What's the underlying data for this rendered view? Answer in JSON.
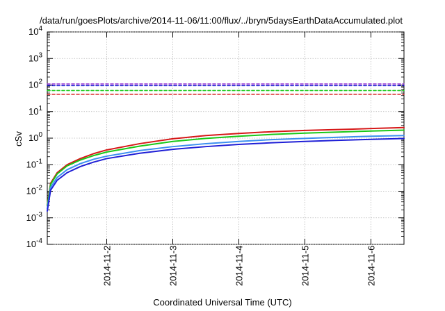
{
  "chart_data": {
    "type": "line",
    "title": "/data/run/goesPlots/archive/2014-11-06/11:00/flux/../bryn/5daysEarthDataAccumulated.plot",
    "xlabel": "Coordinated Universal Time (UTC)",
    "ylabel": "cSv",
    "x_domain_days": [
      1.1,
      6.5
    ],
    "x_ticks": [
      {
        "value": 2,
        "label": "2014-11-2"
      },
      {
        "value": 3,
        "label": "2014-11-3"
      },
      {
        "value": 4,
        "label": "2014-11-4"
      },
      {
        "value": 5,
        "label": "2014-11-5"
      },
      {
        "value": 6,
        "label": "2014-11-6"
      }
    ],
    "yscale": "log",
    "ylim": [
      0.0001,
      10000
    ],
    "y_ticks": [
      {
        "base": "10",
        "exp": "4",
        "value": 10000
      },
      {
        "base": "10",
        "exp": "3",
        "value": 1000
      },
      {
        "base": "10",
        "exp": "2",
        "value": 100
      },
      {
        "base": "10",
        "exp": "1",
        "value": 10
      },
      {
        "base": "10",
        "exp": "0",
        "value": 1
      },
      {
        "base": "10",
        "exp": "-1",
        "value": 0.1
      },
      {
        "base": "10",
        "exp": "-2",
        "value": 0.01
      },
      {
        "base": "10",
        "exp": "-3",
        "value": 0.001
      },
      {
        "base": "10",
        "exp": "-4",
        "value": 0.0001
      }
    ],
    "grid": true,
    "series": [
      {
        "style": "solid",
        "color": "#d61818",
        "x": [
          1.1,
          1.15,
          1.25,
          1.4,
          1.6,
          1.8,
          2.0,
          2.5,
          3.0,
          3.5,
          4.0,
          4.5,
          5.0,
          5.5,
          6.0,
          6.5
        ],
        "y": [
          0.003,
          0.02,
          0.05,
          0.1,
          0.17,
          0.26,
          0.36,
          0.62,
          0.95,
          1.25,
          1.5,
          1.75,
          1.95,
          2.1,
          2.3,
          2.5
        ]
      },
      {
        "style": "solid",
        "color": "#18c818",
        "x": [
          1.1,
          1.15,
          1.25,
          1.4,
          1.6,
          1.8,
          2.0,
          2.5,
          3.0,
          3.5,
          4.0,
          4.5,
          5.0,
          5.5,
          6.0,
          6.5
        ],
        "y": [
          0.0028,
          0.018,
          0.045,
          0.09,
          0.15,
          0.22,
          0.3,
          0.5,
          0.75,
          0.98,
          1.18,
          1.38,
          1.55,
          1.7,
          1.85,
          2.0
        ]
      },
      {
        "style": "solid",
        "color": "#3b8ff0",
        "x": [
          1.1,
          1.15,
          1.25,
          1.4,
          1.6,
          1.8,
          2.0,
          2.5,
          3.0,
          3.5,
          4.0,
          4.5,
          5.0,
          5.5,
          6.0,
          6.5
        ],
        "y": [
          0.0022,
          0.014,
          0.033,
          0.065,
          0.11,
          0.16,
          0.21,
          0.34,
          0.48,
          0.62,
          0.75,
          0.88,
          0.98,
          1.08,
          1.18,
          1.25
        ]
      },
      {
        "style": "solid",
        "color": "#1f1fd6",
        "x": [
          1.1,
          1.15,
          1.25,
          1.4,
          1.6,
          1.8,
          2.0,
          2.5,
          3.0,
          3.5,
          4.0,
          4.5,
          5.0,
          5.5,
          6.0,
          6.5
        ],
        "y": [
          0.0018,
          0.011,
          0.026,
          0.05,
          0.085,
          0.125,
          0.17,
          0.27,
          0.38,
          0.48,
          0.58,
          0.67,
          0.75,
          0.83,
          0.9,
          0.97
        ]
      },
      {
        "style": "dashed",
        "color": "#9b3fd6",
        "x": [
          1.1,
          6.5
        ],
        "y": [
          110,
          110
        ]
      },
      {
        "style": "dashed",
        "color": "#1f1fd6",
        "x": [
          1.1,
          6.5
        ],
        "y": [
          95,
          95
        ]
      },
      {
        "style": "dashed",
        "color": "#18c818",
        "x": [
          1.1,
          6.5
        ],
        "y": [
          62,
          62
        ]
      },
      {
        "style": "dashed",
        "color": "#d61818",
        "x": [
          1.1,
          6.5
        ],
        "y": [
          45,
          45
        ]
      }
    ]
  }
}
